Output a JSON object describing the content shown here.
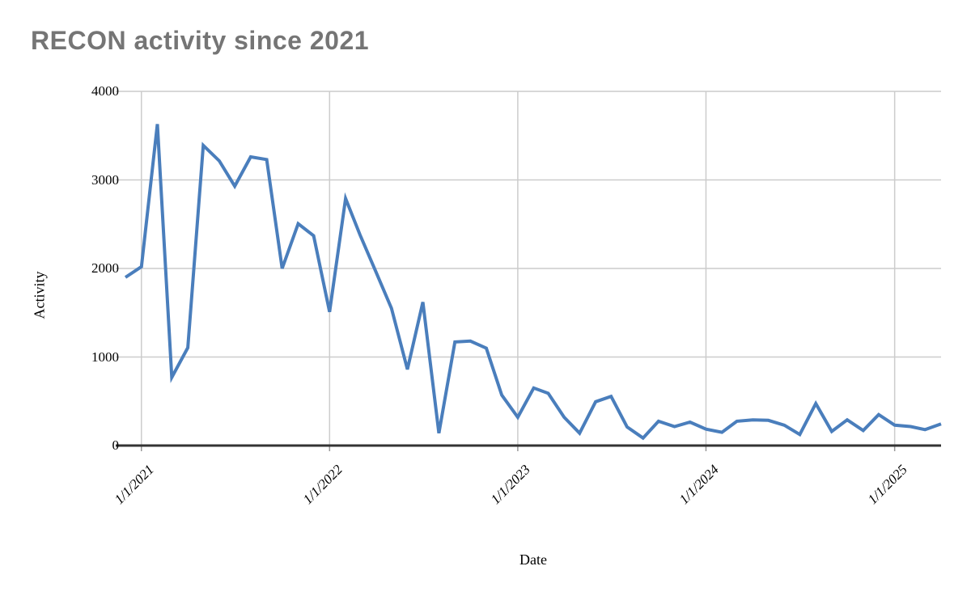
{
  "page": {
    "background": "#ffffff"
  },
  "chart_data": {
    "type": "line",
    "title": "RECON activity since 2021",
    "title_color": "#757575",
    "xlabel": "Date",
    "ylabel": "Activity",
    "ylim": [
      0,
      4000
    ],
    "y_ticks": [
      0,
      1000,
      2000,
      3000,
      4000
    ],
    "x_tick_labels": [
      "1/1/2021",
      "1/1/2022",
      "1/1/2023",
      "1/1/2024",
      "1/1/2025"
    ],
    "grid": true,
    "legend_position": "none",
    "line_color": "#4a7ebc",
    "axis_color": "#333333",
    "gridline_color": "#cccccc",
    "series": [
      {
        "name": "Activity",
        "dates": [
          "12/1/2020",
          "1/1/2021",
          "2/1/2021",
          "3/1/2021",
          "4/1/2021",
          "5/1/2021",
          "6/1/2021",
          "7/1/2021",
          "8/1/2021",
          "9/1/2021",
          "10/1/2021",
          "11/1/2021",
          "12/1/2021",
          "1/1/2022",
          "2/1/2022",
          "3/1/2022",
          "4/1/2022",
          "5/1/2022",
          "6/1/2022",
          "7/1/2022",
          "8/1/2022",
          "9/1/2022",
          "10/1/2022",
          "11/1/2022",
          "12/1/2022",
          "1/1/2023",
          "2/1/2023",
          "3/1/2023",
          "4/1/2023",
          "5/1/2023",
          "6/1/2023",
          "7/1/2023",
          "8/1/2023",
          "9/1/2023",
          "10/1/2023",
          "11/1/2023",
          "12/1/2023",
          "1/1/2024",
          "2/1/2024",
          "3/1/2024",
          "4/1/2024",
          "5/1/2024",
          "6/1/2024",
          "7/1/2024",
          "8/1/2024",
          "9/1/2024",
          "10/1/2024",
          "11/1/2024",
          "12/1/2024",
          "1/1/2025",
          "2/1/2025",
          "3/1/2025",
          "4/1/2025"
        ],
        "values": [
          1900,
          2020,
          3630,
          770,
          1105,
          3390,
          3215,
          2930,
          3260,
          3230,
          2000,
          2505,
          2370,
          1510,
          2790,
          2380,
          1960,
          1550,
          860,
          1620,
          140,
          1170,
          1180,
          1100,
          570,
          320,
          650,
          590,
          320,
          140,
          495,
          555,
          210,
          85,
          275,
          215,
          265,
          185,
          150,
          275,
          290,
          285,
          230,
          125,
          475,
          160,
          290,
          170,
          350,
          230,
          215,
          180,
          245
        ]
      }
    ]
  }
}
